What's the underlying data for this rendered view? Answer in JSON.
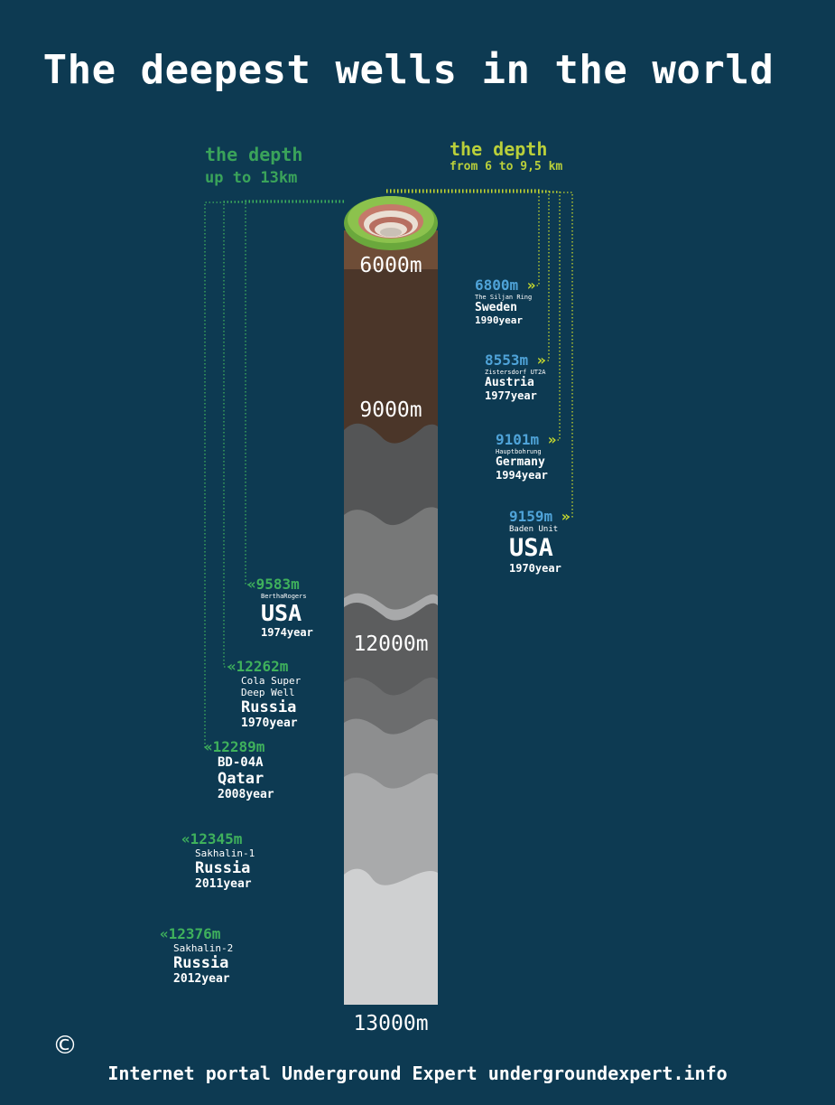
{
  "title": "The deepest wells in the world",
  "left_header": {
    "line1": "the depth",
    "line2": "up to 13km"
  },
  "right_header": {
    "line1": "the depth",
    "line2": "from 6 to 9,5 km"
  },
  "copyright_symbol": "©",
  "footer": "Internet portal Underground Expert undergroundexpert.info",
  "colors": {
    "background": "#0d3a52",
    "green_accent": "#3fb15c",
    "lime_accent": "#c6d82e",
    "blue_depth": "#4fa3d8",
    "soil": "#4b3629"
  },
  "chart_data": {
    "type": "bar",
    "ylim": [
      5500,
      13000
    ],
    "depth_ticks": [
      "6000m",
      "9000m",
      "12000m",
      "13000m"
    ],
    "wells_right": [
      {
        "depth_label": "6800m",
        "value": 6800,
        "name": "The Siljan Ring",
        "country": "Sweden",
        "year": "1990",
        "year_unit": "year"
      },
      {
        "depth_label": "8553m",
        "value": 8553,
        "name": "Zistersdorf UT2A",
        "country": "Austria",
        "year": "1977",
        "year_unit": "year"
      },
      {
        "depth_label": "9101m",
        "value": 9101,
        "name": "Hauptbohrung",
        "country": "Germany",
        "year": "1994",
        "year_unit": "year"
      },
      {
        "depth_label": "9159m",
        "value": 9159,
        "name": "Baden Unit",
        "country": "USA",
        "year": "1970",
        "year_unit": "year"
      }
    ],
    "wells_left": [
      {
        "depth_label": "9583m",
        "value": 9583,
        "name": "BerthaRogers",
        "country": "USA",
        "year": "1974",
        "year_unit": "year"
      },
      {
        "depth_label": "12262m",
        "value": 12262,
        "name": "Cola Super Deep Well",
        "name_line1": "Cola Super",
        "name_line2": "Deep Well",
        "country": "Russia",
        "year": "1970",
        "year_unit": "year"
      },
      {
        "depth_label": "12289m",
        "value": 12289,
        "name": "BD-04A",
        "country": "Qatar",
        "year": "2008",
        "year_unit": "year"
      },
      {
        "depth_label": "12345m",
        "value": 12345,
        "name": "Sakhalin-1",
        "country": "Russia",
        "year": "2011",
        "year_unit": "year"
      },
      {
        "depth_label": "12376m",
        "value": 12376,
        "name": "Sakhalin-2",
        "country": "Russia",
        "year": "2012",
        "year_unit": "year"
      }
    ]
  }
}
